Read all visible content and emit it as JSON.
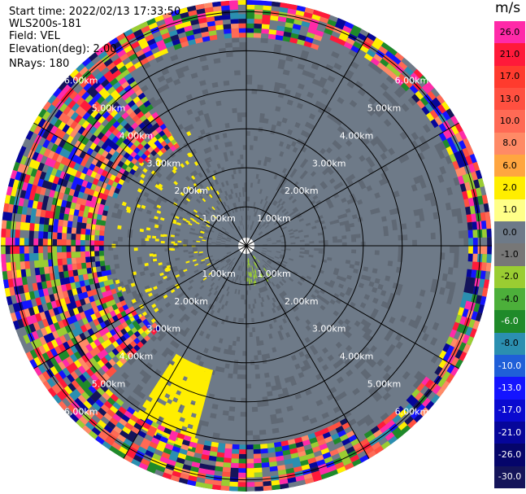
{
  "header": {
    "start_time": "Start time: 2022/02/13 17:33:50",
    "instrument": "WLS200s-181",
    "field": "Field: VEL",
    "elevation": "Elevation(deg): 2.00",
    "nrays": "NRays: 180"
  },
  "colorbar": {
    "unit": "m/s",
    "entries": [
      {
        "label": "26.0",
        "color": "#ff2aa8"
      },
      {
        "label": "21.0",
        "color": "#ff1a3a"
      },
      {
        "label": "17.0",
        "color": "#ff3b2e"
      },
      {
        "label": "13.0",
        "color": "#ff5040"
      },
      {
        "label": "10.0",
        "color": "#ff6a55"
      },
      {
        "label": "8.0",
        "color": "#ff8a66"
      },
      {
        "label": "6.0",
        "color": "#ffa640"
      },
      {
        "label": "2.0",
        "color": "#ffee00"
      },
      {
        "label": "1.0",
        "color": "#ffff88"
      },
      {
        "label": "0.0",
        "color": "#6e7a88"
      },
      {
        "label": "-1.0",
        "color": "#777777"
      },
      {
        "label": "-2.0",
        "color": "#9acd32"
      },
      {
        "label": "-4.0",
        "color": "#4caf3a"
      },
      {
        "label": "-6.0",
        "color": "#1f8a2a"
      },
      {
        "label": "-8.0",
        "color": "#2b8fb0"
      },
      {
        "label": "-10.0",
        "color": "#1f5fd8"
      },
      {
        "label": "-13.0",
        "color": "#1414ff"
      },
      {
        "label": "-17.0",
        "color": "#0a0ad0"
      },
      {
        "label": "-21.0",
        "color": "#06069a"
      },
      {
        "label": "-26.0",
        "color": "#05056a"
      },
      {
        "label": "-30.0",
        "color": "#14145a"
      }
    ]
  },
  "chart_data": {
    "type": "heatmap",
    "projection": "polar PPI",
    "range_rings_km": [
      1,
      2,
      3,
      4,
      5,
      6
    ],
    "ring_labels": [
      "1.00km",
      "2.00km",
      "3.00km",
      "4.00km",
      "5.00km",
      "6.00km"
    ],
    "spoke_angles_deg": [
      0,
      30,
      60,
      90,
      120,
      150,
      180,
      210,
      240,
      270,
      300,
      330
    ],
    "max_range_km": 6.3,
    "background_color": "#6e7a88",
    "noise_color_pool": [
      "#ff2aa8",
      "#ff1a3a",
      "#ff5040",
      "#ff6a55",
      "#ffee00",
      "#1414ff",
      "#06069a",
      "#2b8fb0",
      "#1f8a2a",
      "#9acd32",
      "#ff8a66",
      "#14145a"
    ],
    "yellow_patch": {
      "az_start_deg": 195,
      "az_end_deg": 213,
      "r_start_km": 3.3,
      "r_end_km": 5.3,
      "value_ms": 2.0
    },
    "yellow_speckle": {
      "az_start_deg": 230,
      "az_end_deg": 335,
      "r_start_km": 1.0,
      "r_end_km": 3.5
    },
    "green_speckle": {
      "az_start_deg": 140,
      "az_end_deg": 180,
      "r_start_km": 0.3,
      "r_end_km": 1.0
    }
  }
}
